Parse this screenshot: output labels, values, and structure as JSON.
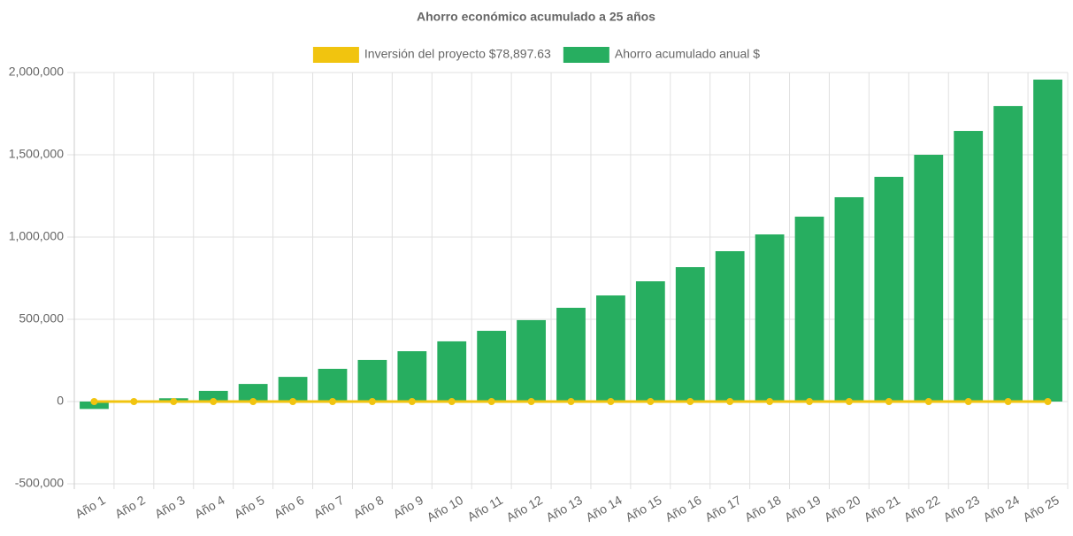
{
  "chart_data": {
    "type": "bar",
    "title": "Ahorro económico acumulado a 25 años",
    "categories": [
      "Año 1",
      "Año 2",
      "Año 3",
      "Año 4",
      "Año 5",
      "Año 6",
      "Año 7",
      "Año 8",
      "Año 9",
      "Año 10",
      "Año 11",
      "Año 12",
      "Año 13",
      "Año 14",
      "Año 15",
      "Año 16",
      "Año 17",
      "Año 18",
      "Año 19",
      "Año 20",
      "Año 21",
      "Año 22",
      "Año 23",
      "Año 24",
      "Año 25"
    ],
    "series": [
      {
        "name": "Inversión del proyecto $78,897.63",
        "type": "line",
        "color": "#f1c40f",
        "values": [
          0,
          0,
          0,
          0,
          0,
          0,
          0,
          0,
          0,
          0,
          0,
          0,
          0,
          0,
          0,
          0,
          0,
          0,
          0,
          0,
          0,
          0,
          0,
          0,
          0
        ]
      },
      {
        "name": "Ahorro acumulado anual $",
        "type": "bar",
        "color": "#27ae60",
        "values": [
          -45000,
          -3000,
          20000,
          65000,
          107000,
          150000,
          199000,
          253000,
          306000,
          366000,
          430000,
          495000,
          570000,
          645000,
          731000,
          817000,
          914000,
          1016000,
          1124000,
          1242000,
          1366000,
          1500000,
          1645000,
          1796000,
          1957000
        ]
      }
    ],
    "ylim": [
      -500000,
      2000000
    ],
    "yticks": [
      {
        "value": -500000,
        "label": "-500,000"
      },
      0,
      {
        "value": 500000,
        "label": "500,000"
      },
      {
        "value": 1000000,
        "label": "1,000,000"
      },
      {
        "value": 1500000,
        "label": "1,500,000"
      },
      {
        "value": 2000000,
        "label": "2,000,000"
      }
    ],
    "grid": true,
    "legend": "top"
  }
}
